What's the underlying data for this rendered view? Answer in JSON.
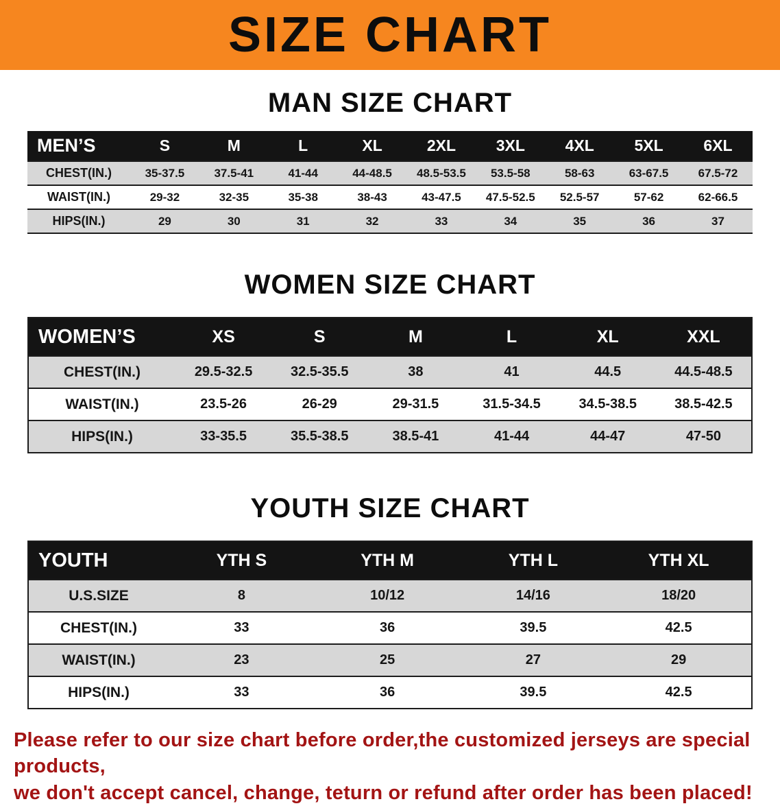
{
  "banner": {
    "title": "SIZE CHART"
  },
  "colors": {
    "banner_bg": "#f6861f",
    "table_header_bg": "#141414",
    "row_shaded": "#d7d7d7",
    "footer_text": "#a31414"
  },
  "sections": [
    {
      "id": "men",
      "title": "MAN SIZE CHART",
      "table": {
        "corner": "MEN’S",
        "columns": [
          "S",
          "M",
          "L",
          "XL",
          "2XL",
          "3XL",
          "4XL",
          "5XL",
          "6XL"
        ],
        "rows": [
          {
            "label": "CHEST(IN.)",
            "values": [
              "35-37.5",
              "37.5-41",
              "41-44",
              "44-48.5",
              "48.5-53.5",
              "53.5-58",
              "58-63",
              "63-67.5",
              "67.5-72"
            ]
          },
          {
            "label": "WAIST(IN.)",
            "values": [
              "29-32",
              "32-35",
              "35-38",
              "38-43",
              "43-47.5",
              "47.5-52.5",
              "52.5-57",
              "57-62",
              "62-66.5"
            ]
          },
          {
            "label": "HIPS(IN.)",
            "values": [
              "29",
              "30",
              "31",
              "32",
              "33",
              "34",
              "35",
              "36",
              "37"
            ]
          }
        ]
      }
    },
    {
      "id": "women",
      "title": "WOMEN SIZE CHART",
      "table": {
        "corner": "WOMEN’S",
        "columns": [
          "XS",
          "S",
          "M",
          "L",
          "XL",
          "XXL"
        ],
        "rows": [
          {
            "label": "CHEST(IN.)",
            "values": [
              "29.5-32.5",
              "32.5-35.5",
              "38",
              "41",
              "44.5",
              "44.5-48.5"
            ]
          },
          {
            "label": "WAIST(IN.)",
            "values": [
              "23.5-26",
              "26-29",
              "29-31.5",
              "31.5-34.5",
              "34.5-38.5",
              "38.5-42.5"
            ]
          },
          {
            "label": "HIPS(IN.)",
            "values": [
              "33-35.5",
              "35.5-38.5",
              "38.5-41",
              "41-44",
              "44-47",
              "47-50"
            ]
          }
        ]
      }
    },
    {
      "id": "youth",
      "title": "YOUTH SIZE CHART",
      "table": {
        "corner": "YOUTH",
        "columns": [
          "YTH S",
          "YTH M",
          "YTH L",
          "YTH XL"
        ],
        "rows": [
          {
            "label": "U.S.SIZE",
            "values": [
              "8",
              "10/12",
              "14/16",
              "18/20"
            ]
          },
          {
            "label": "CHEST(IN.)",
            "values": [
              "33",
              "36",
              "39.5",
              "42.5"
            ]
          },
          {
            "label": "WAIST(IN.)",
            "values": [
              "23",
              "25",
              "27",
              "29"
            ]
          },
          {
            "label": "HIPS(IN.)",
            "values": [
              "33",
              "36",
              "39.5",
              "42.5"
            ]
          }
        ]
      }
    }
  ],
  "footer": {
    "line1": "Please refer to our size chart before order,the customized jerseys are special products,",
    "line2": "we don't accept cancel, change, teturn or refund after order has been placed!"
  }
}
